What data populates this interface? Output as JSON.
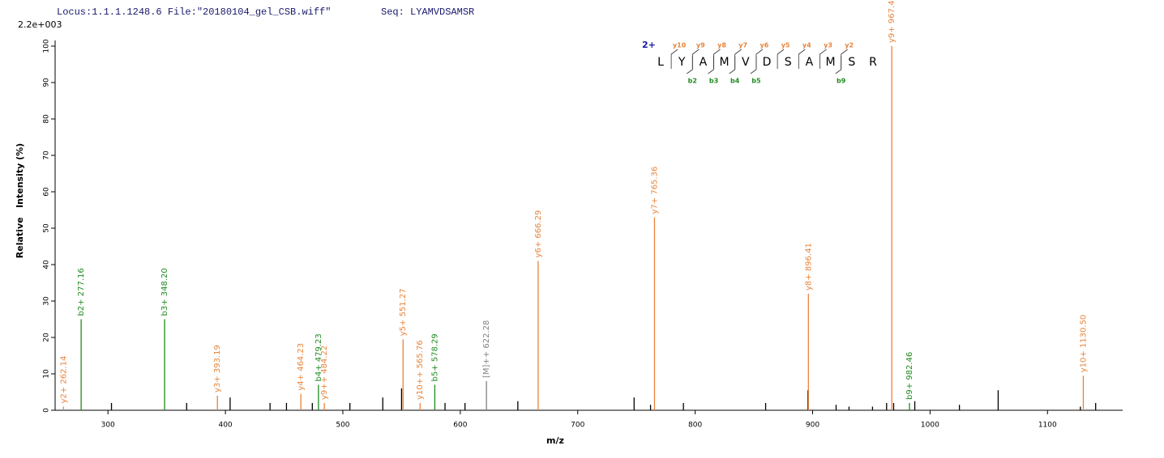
{
  "chart_data": {
    "type": "spectrum",
    "header": {
      "locus": "Locus:1.1.1.1248.6 File:\"20180104_gel_CSB.wiff\"",
      "seq": "Seq: LYAMVDSAMSR",
      "intensity_max": "2.2e+003"
    },
    "y_label": "Relative   Intensity (%)",
    "x_label": "m/z",
    "xlim": [
      255,
      1164
    ],
    "ylim": [
      0,
      100
    ],
    "xticks": [
      300,
      400,
      500,
      600,
      700,
      800,
      900,
      1000,
      1100
    ],
    "yticks": [
      0,
      10,
      20,
      30,
      40,
      50,
      60,
      70,
      80,
      90,
      100
    ],
    "peaks": {
      "x": [
        262.14,
        277.16,
        348.2,
        393.19,
        464.23,
        479.23,
        484.22,
        551.27,
        565.76,
        578.29,
        622.28,
        666.29,
        765.36,
        896.41,
        967.44,
        982.46,
        1130.5
      ],
      "values": [
        1,
        25,
        25,
        4,
        4.5,
        7,
        2,
        19.5,
        2,
        7,
        8,
        41,
        53,
        32,
        100,
        2,
        9.5
      ],
      "labels": [
        "y2+ 262.14",
        "b2+ 277.16",
        "b3+ 348.20",
        "y3+ 393.19",
        "y4+ 464.23",
        "b4+ 479.23",
        "y9++ 484.22",
        "y5+ 551.27",
        "y10++ 565.76",
        "b5+ 578.29",
        "[M]++ 622.28",
        "y6+ 666.29",
        "y7+ 765.36",
        "y8+ 896.41",
        "y9+ 967.44",
        "b9+ 982.46",
        "y10+ 1130.50"
      ],
      "colors": [
        "#e8843c",
        "#1f8a1f",
        "#1f8a1f",
        "#e8843c",
        "#e8843c",
        "#1f8a1f",
        "#e8843c",
        "#e8843c",
        "#e8843c",
        "#1f8a1f",
        "#808080",
        "#e8843c",
        "#e8843c",
        "#e8843c",
        "#e8843c",
        "#1f8a1f",
        "#e8843c"
      ]
    },
    "other_peaks": {
      "x": [
        303,
        367,
        404,
        438,
        452,
        474,
        506,
        534,
        550,
        587,
        604,
        649,
        748,
        762,
        790,
        860,
        896,
        920,
        931,
        951,
        963,
        969,
        987,
        1025,
        1058,
        1128,
        1141
      ],
      "values": [
        2,
        2,
        3.5,
        2,
        2,
        2,
        2,
        3.5,
        6,
        2,
        2,
        2.5,
        3.5,
        1.5,
        2,
        2,
        5.5,
        1.5,
        1,
        1,
        2,
        2,
        2.5,
        1.5,
        5.5,
        1,
        2
      ],
      "color": "#000000"
    },
    "sequence": {
      "charge": "2+",
      "residues": [
        "L",
        "Y",
        "A",
        "M",
        "V",
        "D",
        "S",
        "A",
        "M",
        "S",
        "R"
      ],
      "y_ions": [
        {
          "label": "y10",
          "n": 10
        },
        {
          "label": "y9",
          "n": 9
        },
        {
          "label": "y8",
          "n": 8
        },
        {
          "label": "y7",
          "n": 7
        },
        {
          "label": "y6",
          "n": 6
        },
        {
          "label": "y5",
          "n": 5
        },
        {
          "label": "y4",
          "n": 4
        },
        {
          "label": "y3",
          "n": 3
        },
        {
          "label": "y2",
          "n": 2
        }
      ],
      "b_ions": [
        {
          "label": "b2",
          "n": 2
        },
        {
          "label": "b3",
          "n": 3
        },
        {
          "label": "b4",
          "n": 4
        },
        {
          "label": "b5",
          "n": 5
        },
        {
          "label": "b9",
          "n": 9
        }
      ]
    }
  }
}
